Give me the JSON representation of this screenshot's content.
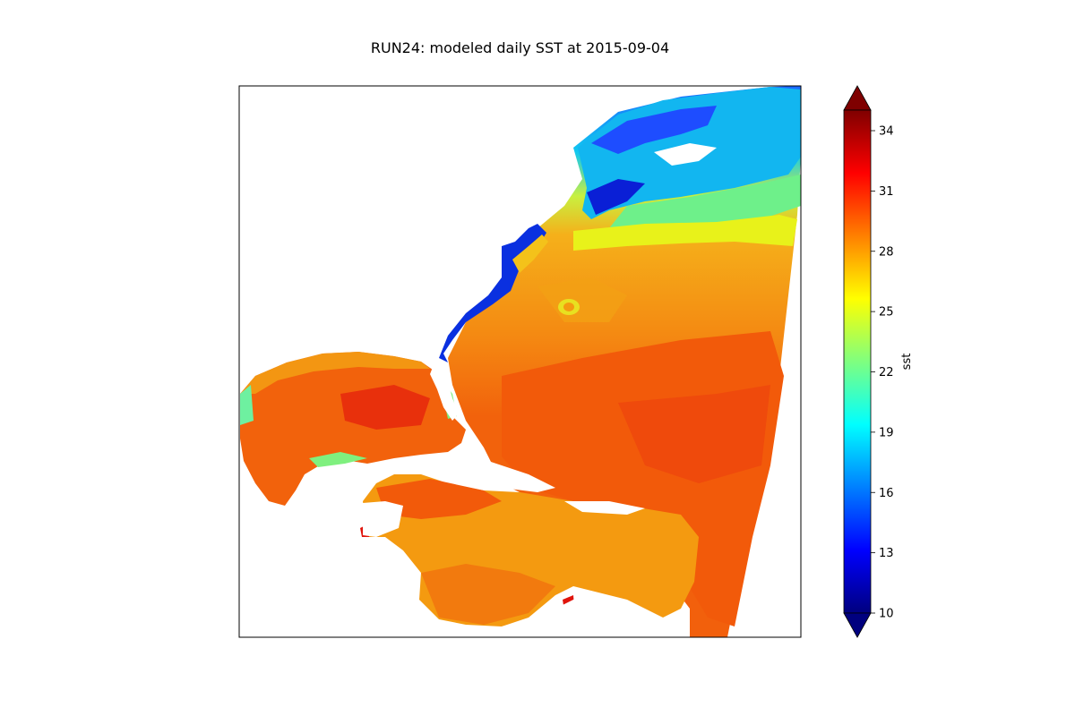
{
  "title": "RUN24: modeled daily SST at 2015-09-04",
  "colorbar": {
    "label": "sst",
    "ticks": [
      "10",
      "13",
      "16",
      "19",
      "22",
      "25",
      "28",
      "31",
      "34"
    ],
    "range": [
      10,
      34
    ],
    "extend": "both",
    "colormap": "jet"
  },
  "colors": {
    "coastal_cold": "#0a1fd6",
    "shelf_cool": "#12b6f0",
    "mid_warm": "#e8f21a",
    "warm": "#f49a10",
    "hot": "#f25a0a",
    "hottest": "#e0240c"
  }
}
